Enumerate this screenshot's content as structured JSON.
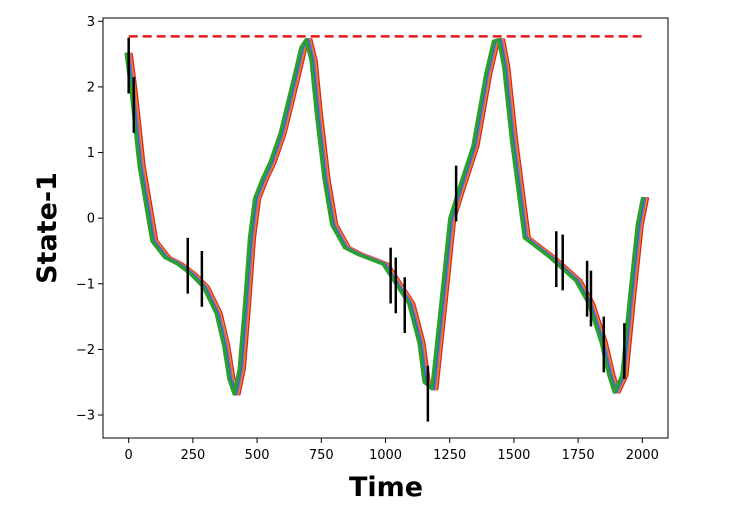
{
  "chart_data": {
    "type": "line",
    "title": "",
    "xlabel": "Time",
    "ylabel": "State-1",
    "xlim": [
      -100,
      2100
    ],
    "ylim": [
      -3.35,
      3.05
    ],
    "xticks": [
      0,
      250,
      500,
      750,
      1000,
      1250,
      1500,
      1750,
      2000
    ],
    "yticks": [
      -3,
      -2,
      -1,
      0,
      1,
      2,
      3
    ],
    "grid": false,
    "legend": "none",
    "threshold": {
      "y": 2.77,
      "color": "#e31a1c",
      "style": "dashed"
    },
    "trajectory_colors": [
      "#d62728",
      "#ff7f0e",
      "#9467bd",
      "#1f77b4",
      "#2ca02c"
    ],
    "trajectory_offsets": [
      10,
      5,
      0,
      -5,
      -10
    ],
    "series": [
      {
        "x": [
          0,
          20,
          50,
          100,
          150,
          200,
          250,
          300,
          350,
          380,
          400,
          420,
          440,
          460,
          480,
          500,
          530,
          560,
          600,
          650,
          680,
          700,
          720,
          740,
          770,
          800,
          850,
          900,
          1000,
          1100,
          1140,
          1160,
          1190,
          1220,
          1260,
          1300,
          1350,
          1400,
          1430,
          1450,
          1470,
          1500,
          1550,
          1650,
          1750,
          1800,
          1850,
          1880,
          1900,
          1930,
          1960,
          1990,
          2010
        ],
        "y": [
          2.5,
          1.9,
          0.8,
          -0.35,
          -0.6,
          -0.7,
          -0.85,
          -1.05,
          -1.45,
          -1.95,
          -2.45,
          -2.68,
          -2.3,
          -1.35,
          -0.3,
          0.3,
          0.6,
          0.85,
          1.3,
          2.1,
          2.6,
          2.72,
          2.4,
          1.6,
          0.6,
          -0.1,
          -0.45,
          -0.55,
          -0.7,
          -1.3,
          -1.9,
          -2.5,
          -2.6,
          -1.5,
          0.0,
          0.5,
          1.1,
          2.2,
          2.7,
          2.72,
          2.3,
          1.2,
          -0.3,
          -0.6,
          -0.95,
          -1.3,
          -1.9,
          -2.4,
          -2.65,
          -2.4,
          -1.2,
          -0.1,
          0.3
        ]
      }
    ],
    "error_bars": [
      {
        "x": 0,
        "low": 1.9,
        "high": 2.75
      },
      {
        "x": 20,
        "low": 1.3,
        "high": 2.15
      },
      {
        "x": 230,
        "low": -1.15,
        "high": -0.3
      },
      {
        "x": 285,
        "low": -1.35,
        "high": -0.5
      },
      {
        "x": 1020,
        "low": -1.3,
        "high": -0.45
      },
      {
        "x": 1040,
        "low": -1.45,
        "high": -0.6
      },
      {
        "x": 1075,
        "low": -1.75,
        "high": -0.9
      },
      {
        "x": 1165,
        "low": -3.1,
        "high": -2.25
      },
      {
        "x": 1275,
        "low": -0.05,
        "high": 0.8
      },
      {
        "x": 1665,
        "low": -1.05,
        "high": -0.2
      },
      {
        "x": 1690,
        "low": -1.1,
        "high": -0.25
      },
      {
        "x": 1785,
        "low": -1.5,
        "high": -0.65
      },
      {
        "x": 1800,
        "low": -1.65,
        "high": -0.8
      },
      {
        "x": 1850,
        "low": -2.35,
        "high": -1.5
      },
      {
        "x": 1930,
        "low": -2.45,
        "high": -1.6
      }
    ]
  }
}
